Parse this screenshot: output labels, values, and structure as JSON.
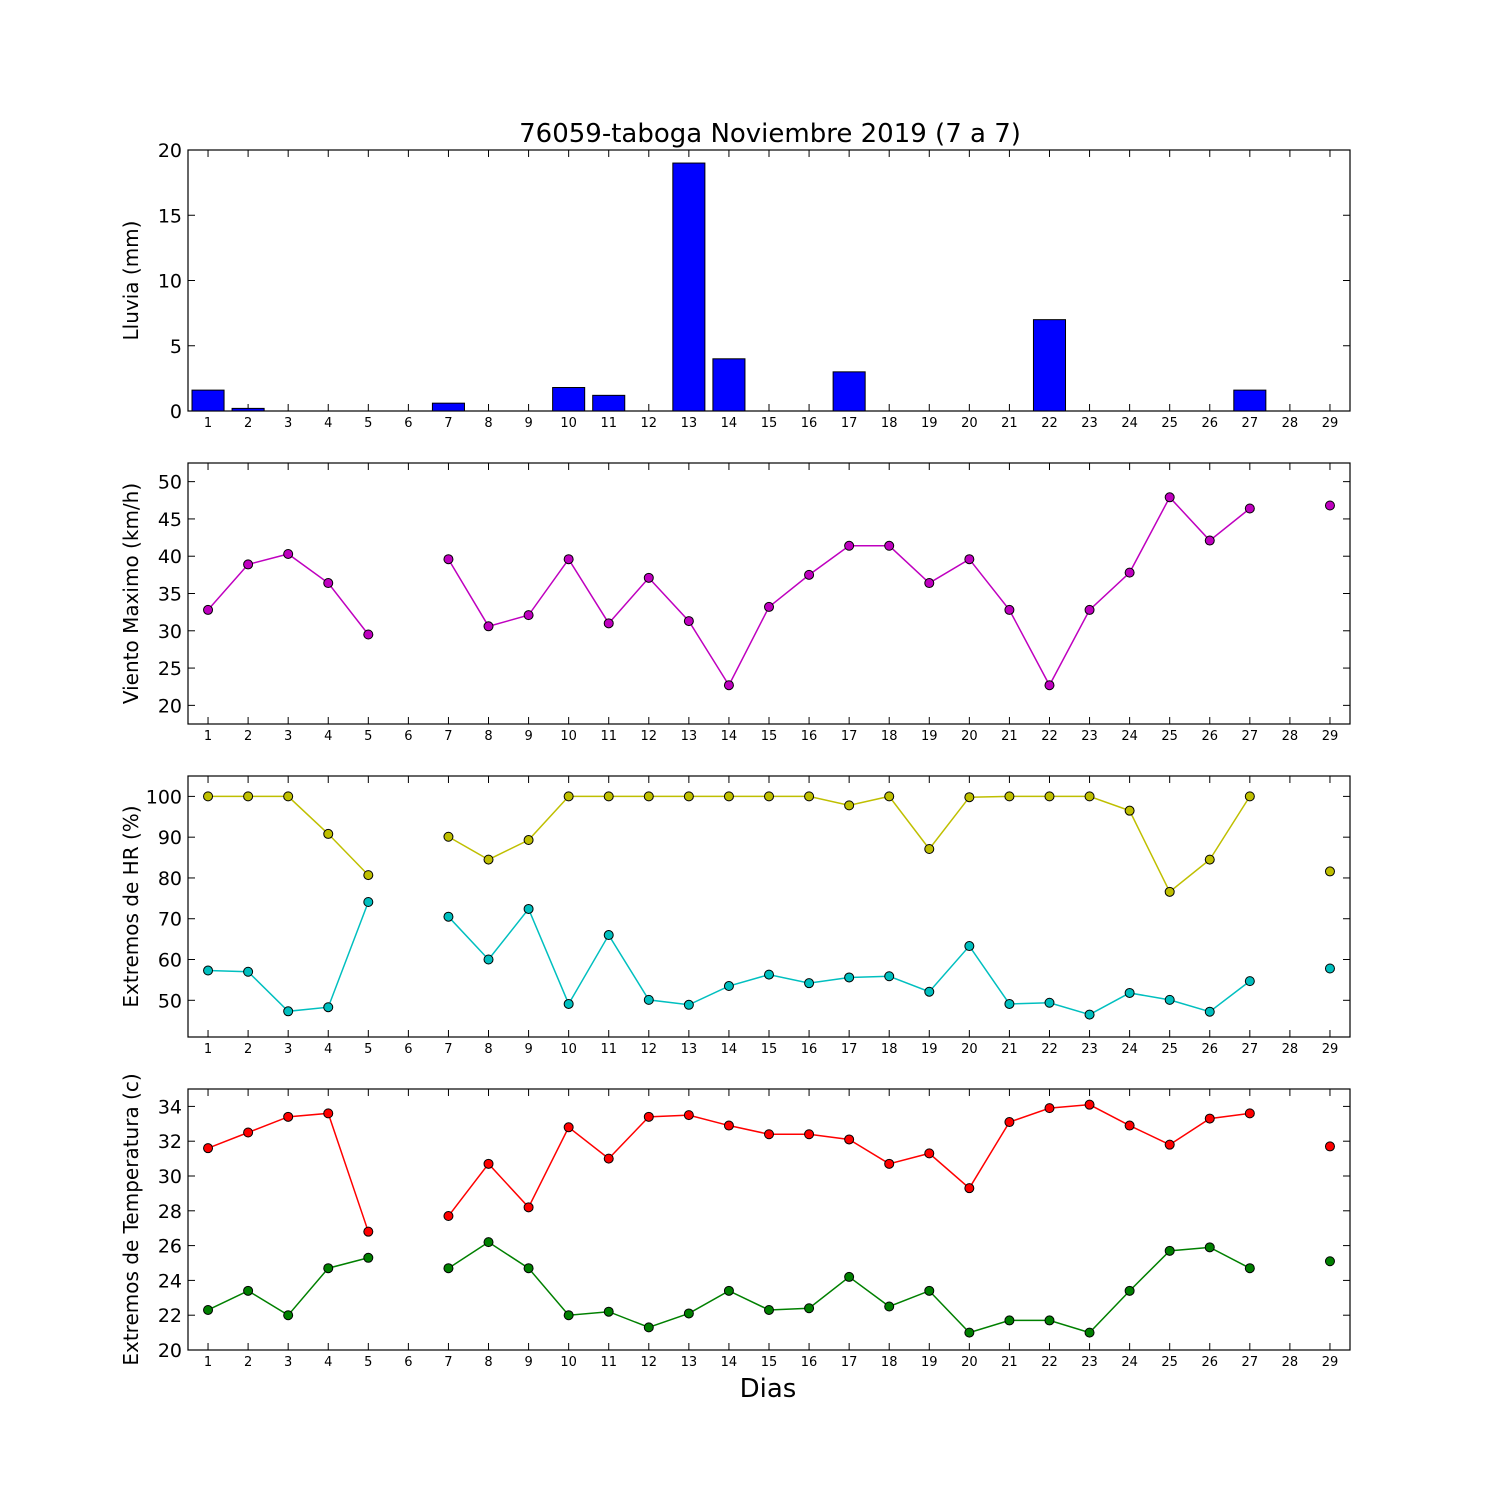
{
  "title": "76059-taboga Noviembre 2019  (7 a 7)",
  "xlabel": "Dias",
  "colors": {
    "rain_bar": "#0000ff",
    "wind": "#bf00bf",
    "hr_max": "#bfbf00",
    "hr_min": "#00bfbf",
    "temp_max": "#ff0000",
    "temp_min": "#008000"
  },
  "chart_data": [
    {
      "type": "bar",
      "ylabel": "Lluvia (mm)",
      "ylim": [
        0,
        20
      ],
      "yticks": [
        0,
        5,
        10,
        15,
        20
      ],
      "xlim": [
        0.5,
        29.5
      ],
      "categories": [
        1,
        2,
        3,
        4,
        5,
        6,
        7,
        8,
        9,
        10,
        11,
        12,
        13,
        14,
        15,
        16,
        17,
        18,
        19,
        20,
        21,
        22,
        23,
        24,
        25,
        26,
        27,
        28,
        29
      ],
      "values": [
        1.6,
        0.2,
        0,
        0,
        0,
        null,
        0.6,
        0,
        0,
        1.8,
        1.2,
        0,
        19.0,
        4.0,
        0,
        0,
        3.0,
        0,
        0,
        0,
        0,
        7.0,
        0,
        0,
        0,
        0,
        1.6,
        null,
        0
      ]
    },
    {
      "type": "line",
      "ylabel": "Viento Maximo (km/h)",
      "ylim": [
        17.5,
        52.5
      ],
      "yticks": [
        20,
        25,
        30,
        35,
        40,
        45,
        50
      ],
      "xlim": [
        0.5,
        29.5
      ],
      "x": [
        1,
        2,
        3,
        4,
        5,
        6,
        7,
        8,
        9,
        10,
        11,
        12,
        13,
        14,
        15,
        16,
        17,
        18,
        19,
        20,
        21,
        22,
        23,
        24,
        25,
        26,
        27,
        28,
        29
      ],
      "series": [
        {
          "values": [
            32.8,
            38.9,
            40.3,
            36.4,
            29.5,
            null,
            39.6,
            30.6,
            32.1,
            39.6,
            31.0,
            37.1,
            31.3,
            22.7,
            33.2,
            37.5,
            41.4,
            41.4,
            36.4,
            39.6,
            32.8,
            22.7,
            32.8,
            37.8,
            47.9,
            42.1,
            46.4,
            null,
            46.8
          ]
        }
      ]
    },
    {
      "type": "line",
      "ylabel": "Extremos de HR (%)",
      "ylim": [
        41,
        105
      ],
      "yticks": [
        50,
        60,
        70,
        80,
        90,
        100
      ],
      "xlim": [
        0.5,
        29.5
      ],
      "x": [
        1,
        2,
        3,
        4,
        5,
        6,
        7,
        8,
        9,
        10,
        11,
        12,
        13,
        14,
        15,
        16,
        17,
        18,
        19,
        20,
        21,
        22,
        23,
        24,
        25,
        26,
        27,
        28,
        29
      ],
      "series": [
        {
          "values": [
            100,
            100,
            100,
            90.8,
            80.7,
            null,
            90.1,
            84.5,
            89.3,
            100,
            100,
            100,
            100,
            100,
            100,
            100,
            97.8,
            100,
            87.1,
            99.8,
            100,
            100,
            100,
            96.5,
            76.6,
            84.5,
            100,
            null,
            81.6
          ]
        },
        {
          "values": [
            57.3,
            57.0,
            47.3,
            48.3,
            74.1,
            null,
            70.5,
            60.0,
            72.4,
            49.1,
            66.0,
            50.1,
            48.9,
            53.5,
            56.3,
            54.2,
            55.6,
            55.9,
            52.1,
            63.3,
            49.1,
            49.4,
            46.5,
            51.8,
            50.1,
            47.2,
            54.7,
            null,
            57.8
          ]
        }
      ]
    },
    {
      "type": "line",
      "ylabel": "Extremos de Temperatura (c)",
      "ylim": [
        20,
        35
      ],
      "yticks": [
        20,
        22,
        24,
        26,
        28,
        30,
        32,
        34
      ],
      "xlim": [
        0.5,
        29.5
      ],
      "x": [
        1,
        2,
        3,
        4,
        5,
        6,
        7,
        8,
        9,
        10,
        11,
        12,
        13,
        14,
        15,
        16,
        17,
        18,
        19,
        20,
        21,
        22,
        23,
        24,
        25,
        26,
        27,
        28,
        29
      ],
      "series": [
        {
          "values": [
            31.6,
            32.5,
            33.4,
            33.6,
            26.8,
            null,
            27.7,
            30.7,
            28.2,
            32.8,
            31.0,
            33.4,
            33.5,
            32.9,
            32.4,
            32.4,
            32.1,
            30.7,
            31.3,
            29.3,
            33.1,
            33.9,
            34.1,
            32.9,
            31.8,
            33.3,
            33.6,
            null,
            31.7
          ]
        },
        {
          "values": [
            22.3,
            23.4,
            22.0,
            24.7,
            25.3,
            null,
            24.7,
            26.2,
            24.7,
            22.0,
            22.2,
            21.3,
            22.1,
            23.4,
            22.3,
            22.4,
            24.2,
            22.5,
            23.4,
            21.0,
            21.7,
            21.7,
            21.0,
            23.4,
            25.7,
            25.9,
            24.7,
            null,
            25.1
          ]
        }
      ]
    }
  ]
}
